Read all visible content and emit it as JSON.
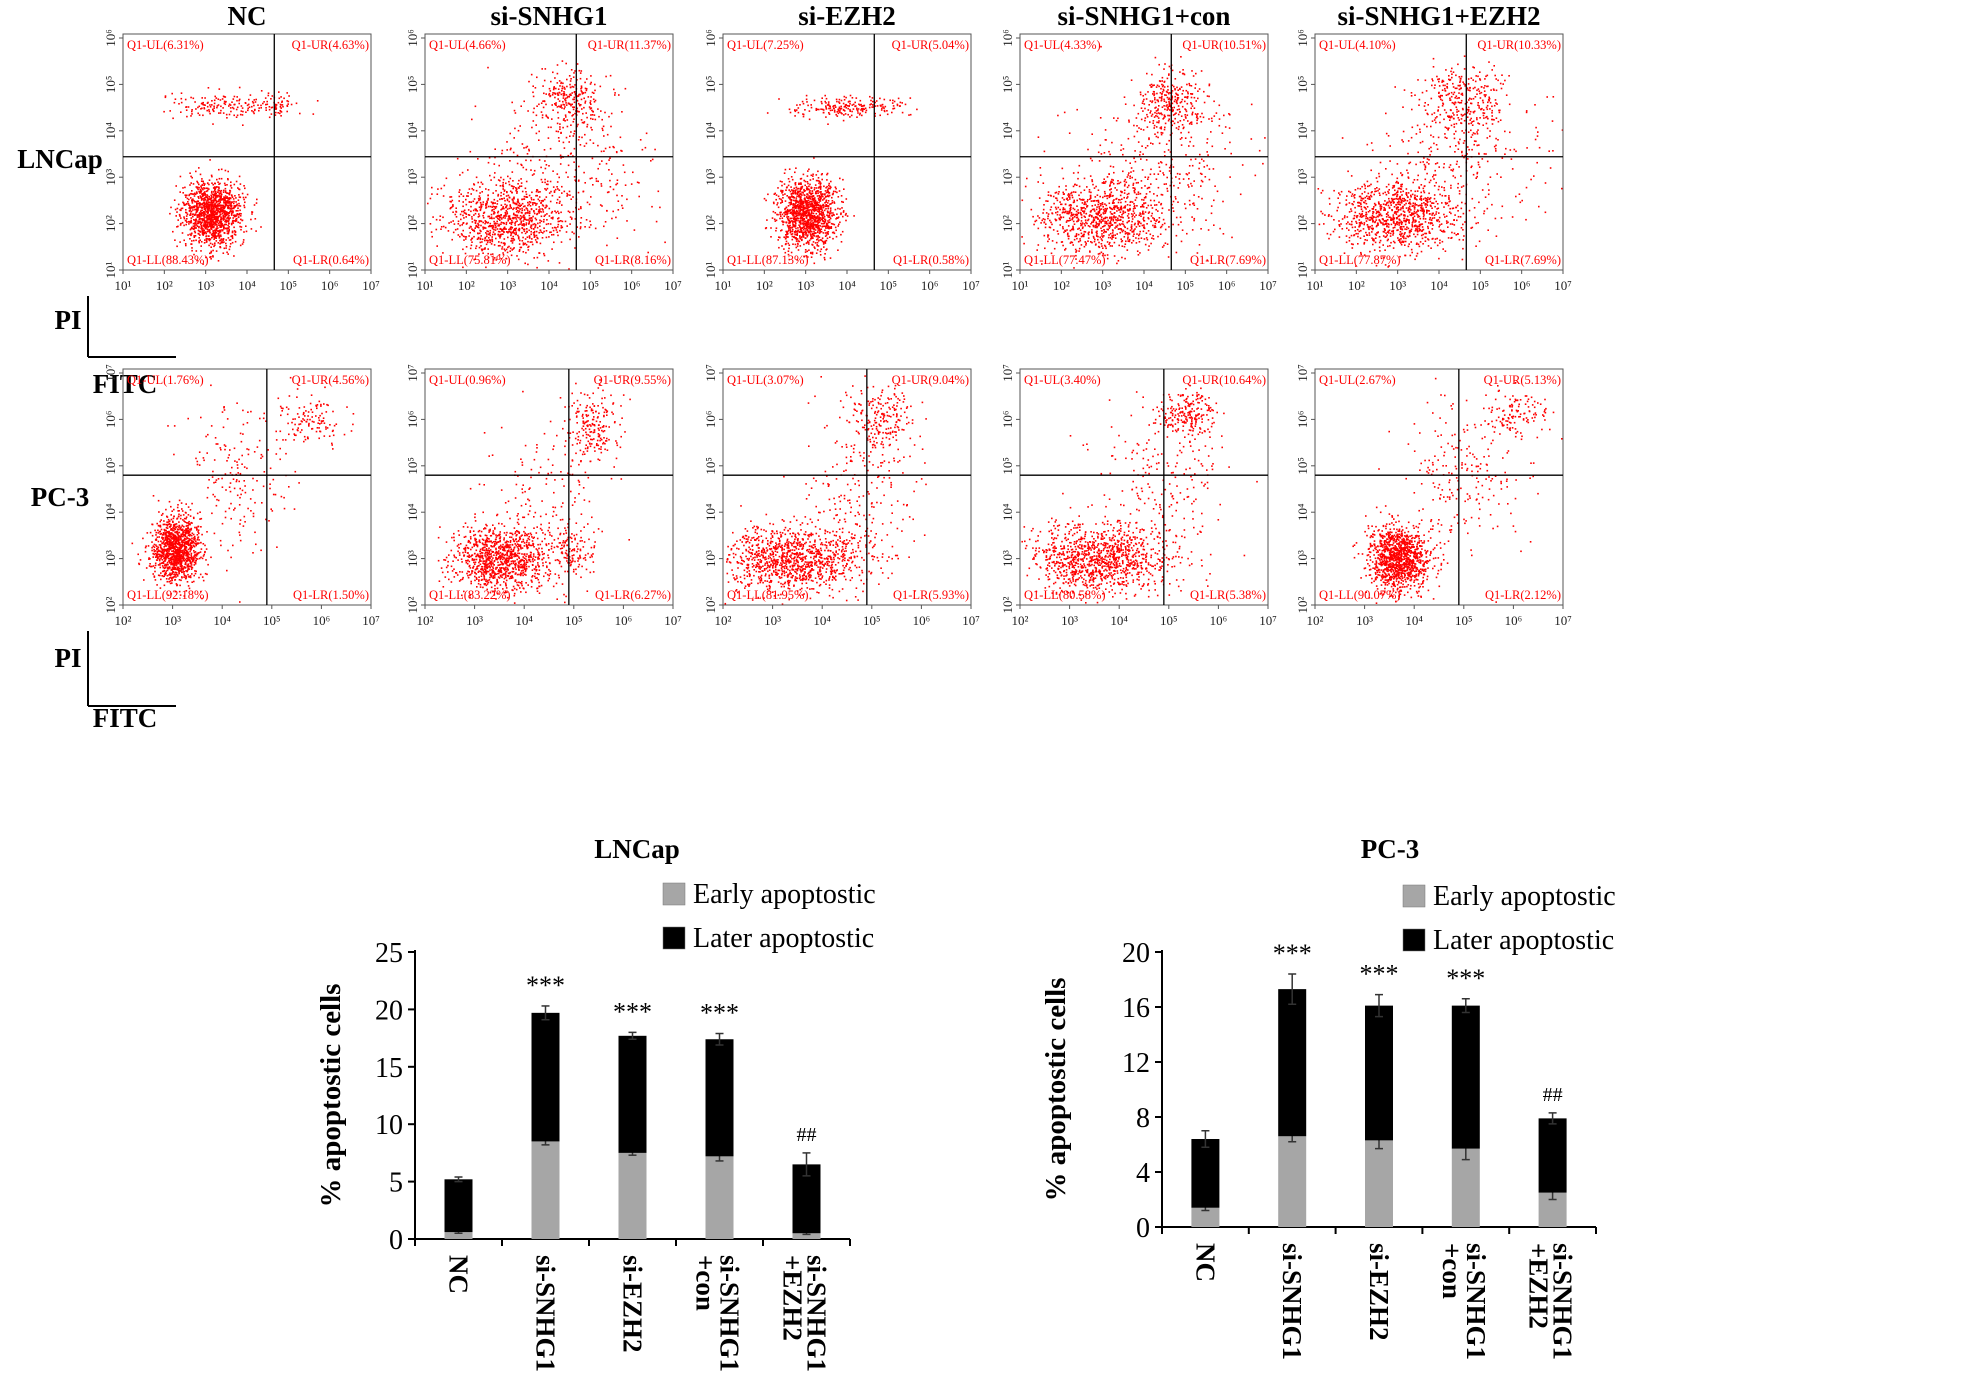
{
  "chart_data": [
    {
      "type": "scatter",
      "panel_kind": "flow-cytometry-grid",
      "column_titles": [
        "NC",
        "si-SNHG1",
        "si-EZH2",
        "si-SNHG1+con",
        "si-SNHG1+EZH2"
      ],
      "axis_labels": {
        "x": "FITC",
        "y": "PI"
      },
      "point_color": "#ff0000",
      "rows": [
        {
          "label": "LNCap",
          "x_ticks": [
            "10¹",
            "10²",
            "10³",
            "10⁴",
            "10⁵",
            "10⁶",
            "10⁷"
          ],
          "y_ticks": [
            "10¹",
            "10²",
            "10³",
            "10⁴",
            "10⁵",
            "10⁶"
          ],
          "panels": [
            {
              "condition": "NC",
              "ul": "Q1-UL(6.31%)",
              "ur": "Q1-UR(4.63%)",
              "ll": "Q1-LL(88.43%)",
              "lr": "Q1-LR(0.64%)",
              "ul_pct": 6.31,
              "ur_pct": 4.63,
              "ll_pct": 88.43,
              "lr_pct": 0.64
            },
            {
              "condition": "si-SNHG1",
              "ul": "Q1-UL(4.66%)",
              "ur": "Q1-UR(11.37%)",
              "ll": "Q1-LL(75.81%)",
              "lr": "Q1-LR(8.16%)",
              "ul_pct": 4.66,
              "ur_pct": 11.37,
              "ll_pct": 75.81,
              "lr_pct": 8.16
            },
            {
              "condition": "si-EZH2",
              "ul": "Q1-UL(7.25%)",
              "ur": "Q1-UR(5.04%)",
              "ll": "Q1-LL(87.13%)",
              "lr": "Q1-LR(0.58%)",
              "ul_pct": 7.25,
              "ur_pct": 5.04,
              "ll_pct": 87.13,
              "lr_pct": 0.58
            },
            {
              "condition": "si-SNHG1+con",
              "ul": "Q1-UL(4.33%)",
              "ur": "Q1-UR(10.51%)",
              "ll": "Q1-LL(77.47%)",
              "lr": "Q1-LR(7.69%)",
              "ul_pct": 4.33,
              "ur_pct": 10.51,
              "ll_pct": 77.47,
              "lr_pct": 7.69
            },
            {
              "condition": "si-SNHG1+EZH2",
              "ul": "Q1-UL(4.10%)",
              "ur": "Q1-UR(10.33%)",
              "ll": "Q1-LL(77.87%)",
              "lr": "Q1-LR(7.69%)",
              "ul_pct": 4.1,
              "ur_pct": 10.33,
              "ll_pct": 77.87,
              "lr_pct": 7.69
            }
          ]
        },
        {
          "label": "PC-3",
          "x_ticks": [
            "10²",
            "10³",
            "10⁴",
            "10⁵",
            "10⁶",
            "10⁷"
          ],
          "y_ticks": [
            "10²",
            "10³",
            "10⁴",
            "10⁵",
            "10⁶",
            "10⁷"
          ],
          "panels": [
            {
              "condition": "NC",
              "ul": "Q1-UL(1.76%)",
              "ur": "Q1-UR(4.56%)",
              "ll": "Q1-LL(92.18%)",
              "lr": "Q1-LR(1.50%)",
              "ul_pct": 1.76,
              "ur_pct": 4.56,
              "ll_pct": 92.18,
              "lr_pct": 1.5
            },
            {
              "condition": "si-SNHG1",
              "ul": "Q1-UL(0.96%)",
              "ur": "Q1-UR(9.55%)",
              "ll": "Q1-LL(83.22%)",
              "lr": "Q1-LR(6.27%)",
              "ul_pct": 0.96,
              "ur_pct": 9.55,
              "ll_pct": 83.22,
              "lr_pct": 6.27
            },
            {
              "condition": "si-EZH2",
              "ul": "Q1-UL(3.07%)",
              "ur": "Q1-UR(9.04%)",
              "ll": "Q1-LL(81.95%)",
              "lr": "Q1-LR(5.93%)",
              "ul_pct": 3.07,
              "ur_pct": 9.04,
              "ll_pct": 81.95,
              "lr_pct": 5.93
            },
            {
              "condition": "si-SNHG1+con",
              "ul": "Q1-UL(3.40%)",
              "ur": "Q1-UR(10.64%)",
              "ll": "Q1-LL(80.58%)",
              "lr": "Q1-LR(5.38%)",
              "ul_pct": 3.4,
              "ur_pct": 10.64,
              "ll_pct": 80.58,
              "lr_pct": 5.38
            },
            {
              "condition": "si-SNHG1+EZH2",
              "ul": "Q1-UL(2.67%)",
              "ur": "Q1-UR(5.13%)",
              "ll": "Q1-LL(90.07%)",
              "lr": "Q1-LR(2.12%)",
              "ul_pct": 2.67,
              "ur_pct": 5.13,
              "ll_pct": 90.07,
              "lr_pct": 2.12
            }
          ]
        }
      ]
    },
    {
      "type": "bar",
      "stacked": true,
      "title": "LNCap",
      "ylabel": "% apoptostic cells",
      "xlabel": "",
      "ylim": [
        0,
        25
      ],
      "y_ticks": [
        0,
        5,
        10,
        15,
        20,
        25
      ],
      "categories": [
        [
          "NC"
        ],
        [
          "si-SNHG1"
        ],
        [
          "si-EZH2"
        ],
        [
          "si-SNHG1",
          "+con"
        ],
        [
          "si-SNHG1",
          "+EZH2"
        ]
      ],
      "series": [
        {
          "name": "Early apoptostic",
          "color": "#a6a6a6",
          "values": [
            0.6,
            8.5,
            7.5,
            7.2,
            0.5
          ],
          "errors": [
            0.1,
            0.3,
            0.2,
            0.4,
            0.1
          ]
        },
        {
          "name": "Later apoptostic",
          "color": "#000000",
          "values": [
            4.6,
            11.2,
            10.2,
            10.2,
            6.0
          ],
          "errors": [
            0.2,
            0.6,
            0.3,
            0.5,
            1.0
          ]
        }
      ],
      "annotations": [
        "",
        "***",
        "***",
        "***",
        "##"
      ],
      "legend_position": "top-right"
    },
    {
      "type": "bar",
      "stacked": true,
      "title": "PC-3",
      "ylabel": "% apoptostic cells",
      "xlabel": "",
      "ylim": [
        0,
        20
      ],
      "y_ticks": [
        0,
        4,
        8,
        12,
        16,
        20
      ],
      "categories": [
        [
          "NC"
        ],
        [
          "si-SNHG1"
        ],
        [
          "si-EZH2"
        ],
        [
          "si-SNHG1",
          "+con"
        ],
        [
          "si-SNHG1",
          "+EZH2"
        ]
      ],
      "series": [
        {
          "name": "Early apoptostic",
          "color": "#a6a6a6",
          "values": [
            1.4,
            6.6,
            6.3,
            5.7,
            2.5
          ],
          "errors": [
            0.2,
            0.4,
            0.6,
            0.8,
            0.5
          ]
        },
        {
          "name": "Later apoptostic",
          "color": "#000000",
          "values": [
            5.0,
            10.7,
            9.8,
            10.4,
            5.4
          ],
          "errors": [
            0.6,
            1.1,
            0.8,
            0.5,
            0.4
          ]
        }
      ],
      "annotations": [
        "",
        "***",
        "***",
        "***",
        "##"
      ],
      "legend_position": "top-right"
    }
  ]
}
